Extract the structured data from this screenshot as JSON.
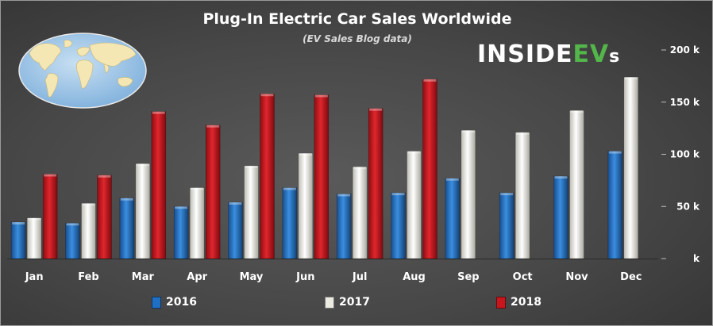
{
  "header": {
    "title": "Plug-In Electric Car Sales Worldwide",
    "subtitle": "(EV Sales Blog data)",
    "logo": {
      "part1": "INSIDE",
      "part2": "EV",
      "part3": "s"
    }
  },
  "colors": {
    "2016": "#1f6fc4",
    "2017": "#ecebe2",
    "2018": "#c8161d",
    "logo_accent": "#53b54a",
    "map_land": "#f4e7b4",
    "map_water": "#9dc3e6"
  },
  "chart_data": {
    "type": "bar",
    "title": "Plug-In Electric Car Sales Worldwide",
    "subtitle": "(EV Sales Blog data)",
    "categories": [
      "Jan",
      "Feb",
      "Mar",
      "Apr",
      "May",
      "Jun",
      "Jul",
      "Aug",
      "Sep",
      "Oct",
      "Nov",
      "Dec"
    ],
    "series": [
      {
        "name": "2016",
        "values": [
          35000,
          34000,
          58000,
          50000,
          54000,
          68000,
          62000,
          63000,
          77000,
          63000,
          79000,
          103000
        ]
      },
      {
        "name": "2017",
        "values": [
          39000,
          53000,
          91000,
          68000,
          89000,
          101000,
          88000,
          103000,
          123000,
          121000,
          142000,
          174000
        ]
      },
      {
        "name": "2018",
        "values": [
          81000,
          80000,
          141000,
          128000,
          158000,
          157000,
          144000,
          172000,
          null,
          null,
          null,
          null
        ]
      }
    ],
    "ylim": [
      0,
      200000
    ],
    "yticks": [
      0,
      50000,
      100000,
      150000,
      200000
    ],
    "ytick_labels": [
      "k",
      "50 k",
      "100 k",
      "150 k",
      "200 k"
    ],
    "y_axis_side": "right",
    "grid": false,
    "legend_position": "bottom"
  }
}
